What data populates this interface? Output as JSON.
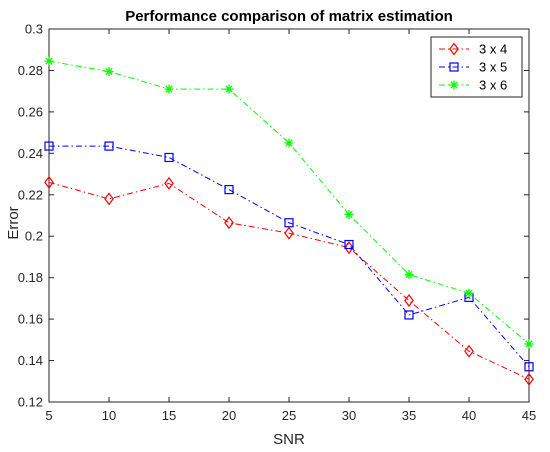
{
  "chart_data": {
    "type": "line",
    "title": "Performance comparison of matrix estimation",
    "xlabel": "SNR",
    "ylabel": "Error",
    "x": [
      5,
      10,
      15,
      20,
      25,
      30,
      35,
      40,
      45
    ],
    "xlim": [
      5,
      45
    ],
    "ylim": [
      0.12,
      0.3
    ],
    "xticks": [
      5,
      10,
      15,
      20,
      25,
      30,
      35,
      40,
      45
    ],
    "yticks": [
      0.12,
      0.14,
      0.16,
      0.18,
      0.2,
      0.22,
      0.24,
      0.26,
      0.28,
      0.3
    ],
    "grid": false,
    "legend_position": "top-right",
    "series": [
      {
        "name": "3 x 4",
        "color": "#ff0000",
        "marker": "diamond",
        "line_style": "dash-dot",
        "values": [
          0.226,
          0.218,
          0.2255,
          0.2065,
          0.2015,
          0.1945,
          0.169,
          0.1445,
          0.131
        ]
      },
      {
        "name": "3 x 5",
        "color": "#0000ff",
        "marker": "square",
        "line_style": "dash-dot",
        "values": [
          0.2435,
          0.2435,
          0.238,
          0.2225,
          0.2065,
          0.196,
          0.162,
          0.1705,
          0.137
        ]
      },
      {
        "name": "3 x 6",
        "color": "#00ff00",
        "marker": "asterisk",
        "line_style": "dash-dot",
        "values": [
          0.2845,
          0.2795,
          0.271,
          0.271,
          0.245,
          0.2105,
          0.1815,
          0.1725,
          0.148
        ]
      }
    ]
  }
}
